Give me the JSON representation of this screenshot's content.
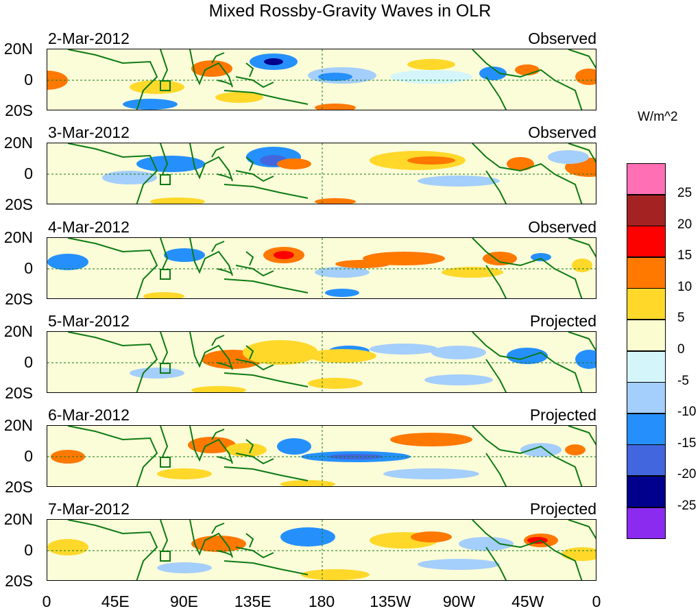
{
  "title": "Mixed Rossby-Gravity Waves in OLR",
  "units": "W/m^2",
  "panels": [
    {
      "date": "2-Mar-2012",
      "kind": "Observed"
    },
    {
      "date": "3-Mar-2012",
      "kind": "Observed"
    },
    {
      "date": "4-Mar-2012",
      "kind": "Observed"
    },
    {
      "date": "5-Mar-2012",
      "kind": "Projected"
    },
    {
      "date": "6-Mar-2012",
      "kind": "Projected"
    },
    {
      "date": "7-Mar-2012",
      "kind": "Projected"
    }
  ],
  "lat_labels": [
    "20N",
    "0",
    "20S"
  ],
  "lon_labels": [
    "0",
    "45E",
    "90E",
    "135E",
    "180",
    "135W",
    "90W",
    "45W",
    "0"
  ],
  "colorbar": {
    "labels": [
      "25",
      "20",
      "15",
      "10",
      "5",
      "0",
      "-5",
      "-10",
      "-15",
      "-20",
      "-25"
    ],
    "colors": [
      "#ff6fb4",
      "#a52222",
      "#ff0000",
      "#ff7800",
      "#ffd82a",
      "#fbfcd0",
      "#d4f6fb",
      "#a4cefc",
      "#2590fc",
      "#4266de",
      "#00008c",
      "#8b2bf0"
    ]
  }
}
